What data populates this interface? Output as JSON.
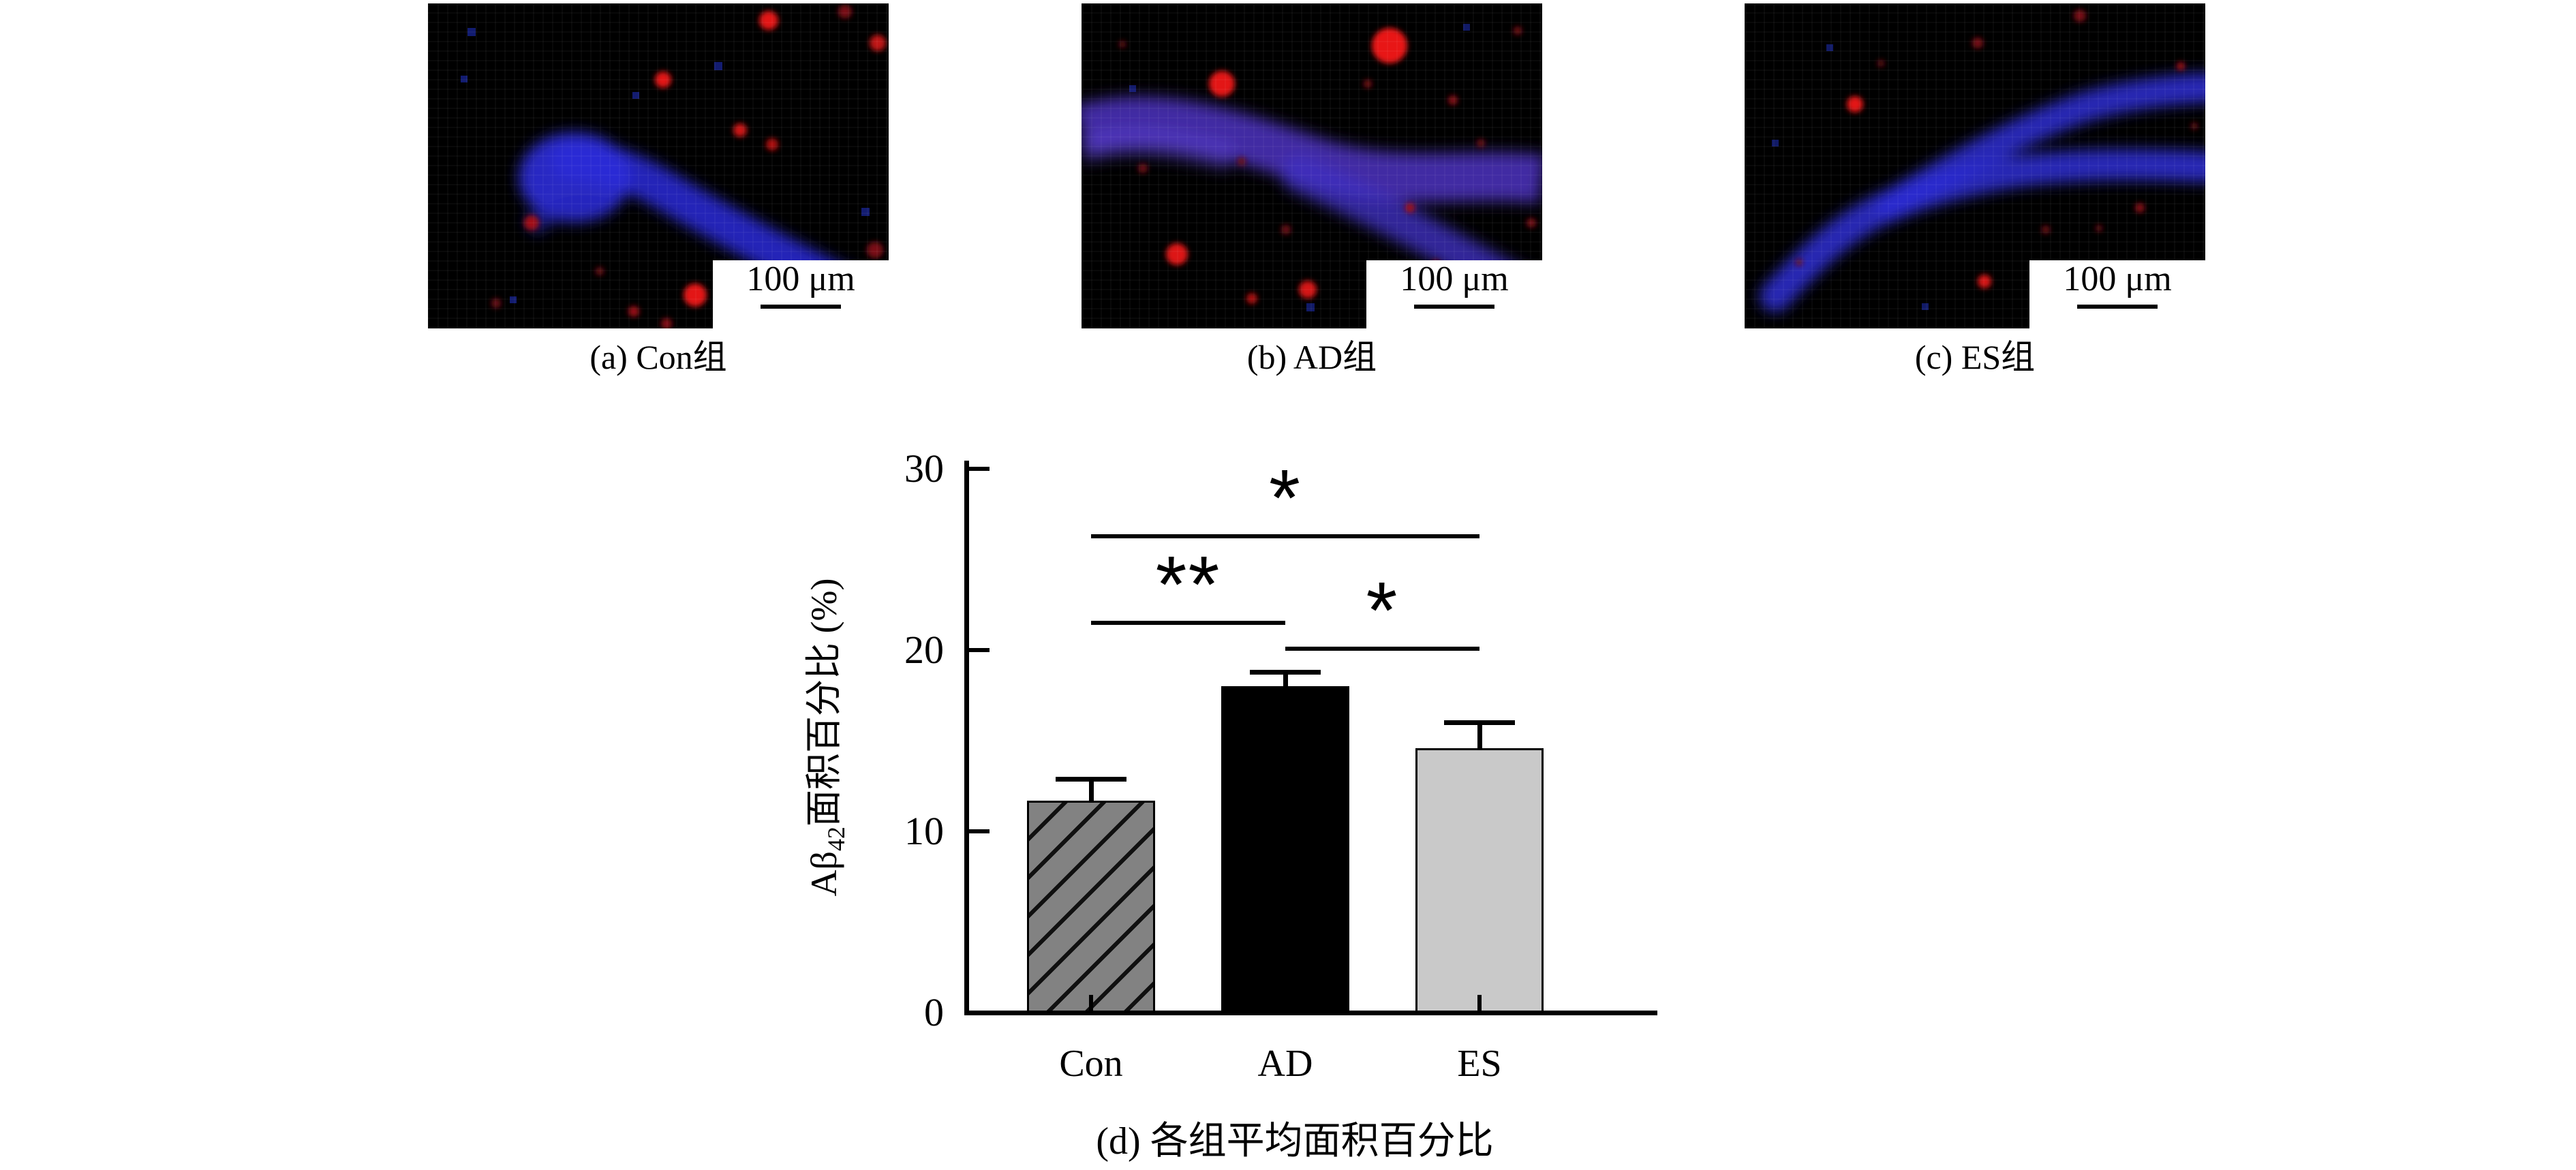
{
  "figure": {
    "panels": [
      {
        "id": "a",
        "caption": "(a) Con组",
        "scalebar_label": "100 μm"
      },
      {
        "id": "b",
        "caption": "(b) AD组",
        "scalebar_label": "100 μm"
      },
      {
        "id": "c",
        "caption": "(c) ES组",
        "scalebar_label": "100 μm"
      }
    ],
    "fluorescence_colors": {
      "nuclei_blue": "#2b2bd8",
      "plaque_red": "#df1313",
      "background": "#000000"
    }
  },
  "chart_data": {
    "type": "bar",
    "title": "(d) 各组平均面积百分比",
    "categories": [
      "Con",
      "AD",
      "ES"
    ],
    "values": [
      11.7,
      18.0,
      14.6
    ],
    "errors_plus": [
      1.2,
      0.8,
      1.4
    ],
    "ylabel": "Aβ42面积百分比 (%)",
    "ylabel_parts": {
      "prefix": "Aβ",
      "sub": "42",
      "suffix": "面积百分比 (%)"
    },
    "xlabel": "",
    "ylim": [
      0,
      30
    ],
    "yticks": [
      0,
      10,
      20,
      30
    ],
    "grid": false,
    "legend": null,
    "bar_colors": [
      "#828282",
      "#000000",
      "#c9c9c9"
    ],
    "bar_hatch": [
      "diagonal",
      "none",
      "none"
    ],
    "significance": [
      {
        "groups": [
          "Con",
          "ES"
        ],
        "label": "*",
        "height": 26.4
      },
      {
        "groups": [
          "Con",
          "AD"
        ],
        "label": "**",
        "height": 21.6
      },
      {
        "groups": [
          "AD",
          "ES"
        ],
        "label": "*",
        "height": 20.2
      }
    ]
  }
}
